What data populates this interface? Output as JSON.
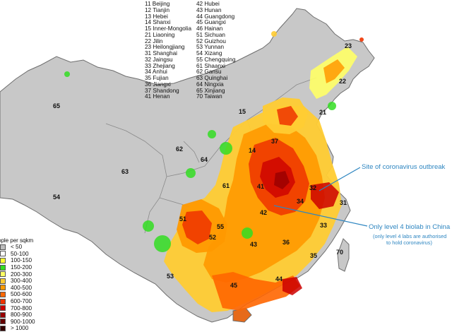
{
  "region_codes": [
    {
      "code": "11",
      "name": "Beijing"
    },
    {
      "code": "12",
      "name": "Tianjin"
    },
    {
      "code": "13",
      "name": "Hebei"
    },
    {
      "code": "14",
      "name": "Shanxi"
    },
    {
      "code": "15",
      "name": "Inner-Mongolia"
    },
    {
      "code": "21",
      "name": "Liaoning"
    },
    {
      "code": "22",
      "name": "Jilin"
    },
    {
      "code": "23",
      "name": "Heilongjiang"
    },
    {
      "code": "31",
      "name": "Shanghai"
    },
    {
      "code": "32",
      "name": "Jaingsu"
    },
    {
      "code": "33",
      "name": "Zhejiang"
    },
    {
      "code": "34",
      "name": "Anhui"
    },
    {
      "code": "35",
      "name": "Fujian"
    },
    {
      "code": "36",
      "name": "Jiangxi"
    },
    {
      "code": "37",
      "name": "Shandong"
    },
    {
      "code": "41",
      "name": "Henan"
    },
    {
      "code": "42",
      "name": "Hubei"
    },
    {
      "code": "43",
      "name": "Hunan"
    },
    {
      "code": "44",
      "name": "Guangdong"
    },
    {
      "code": "45",
      "name": "Guangxi"
    },
    {
      "code": "46",
      "name": "Hainan"
    },
    {
      "code": "51",
      "name": "Sichuan"
    },
    {
      "code": "52",
      "name": "Guizhou"
    },
    {
      "code": "53",
      "name": "Yunnan"
    },
    {
      "code": "54",
      "name": "Xizang"
    },
    {
      "code": "55",
      "name": "Chengquing"
    },
    {
      "code": "61",
      "name": "Shaanxi"
    },
    {
      "code": "62",
      "name": "Gansu"
    },
    {
      "code": "63",
      "name": "Quinghai"
    },
    {
      "code": "64",
      "name": "Ningxia"
    },
    {
      "code": "65",
      "name": "Xinjiang"
    },
    {
      "code": "70",
      "name": "Taiwan"
    }
  ],
  "map_labels": [
    "65",
    "15",
    "23",
    "22",
    "21",
    "62",
    "63",
    "54",
    "64",
    "14",
    "61",
    "41",
    "42",
    "51",
    "55",
    "52",
    "53",
    "43",
    "45",
    "44",
    "36",
    "35",
    "33",
    "31",
    "32",
    "37",
    "34",
    "70"
  ],
  "legend": {
    "title": "ople per sqkm",
    "items": [
      {
        "label": "< 50",
        "color": "#bdbdbd"
      },
      {
        "label": "50-100",
        "color": "#ffffff"
      },
      {
        "label": "100-150",
        "color": "#ffff33"
      },
      {
        "label": "150-200",
        "color": "#33dd22"
      },
      {
        "label": "200-300",
        "color": "#ffff66"
      },
      {
        "label": "300-400",
        "color": "#ffcc33"
      },
      {
        "label": "400-500",
        "color": "#ff9900"
      },
      {
        "label": "500-600",
        "color": "#ff6600"
      },
      {
        "label": "600-700",
        "color": "#ee3300"
      },
      {
        "label": "700-800",
        "color": "#cc0000"
      },
      {
        "label": "800-900",
        "color": "#990000"
      },
      {
        "label": "900-1000",
        "color": "#660000"
      },
      {
        "label": "> 1000",
        "color": "#330000"
      }
    ]
  },
  "annotations": {
    "outbreak": "Site of coronavirus outbreak",
    "biolab": "Only level 4 biolab in China",
    "biolab_note1": "(only level 4 labs are authorised",
    "biolab_note2": "to hold coronavirus)",
    "color": "#2e86c1"
  },
  "colors": {
    "land": "#c8c8c8",
    "border": "#6e6e6e"
  }
}
